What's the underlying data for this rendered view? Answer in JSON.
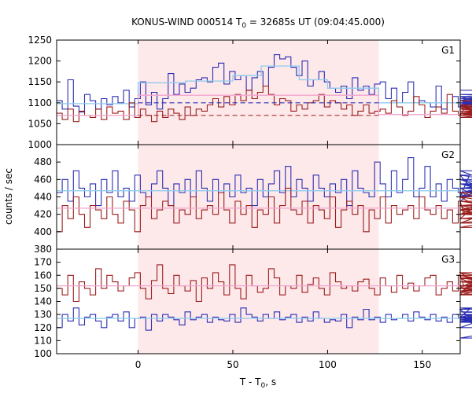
{
  "chart_data": {
    "type": "line",
    "title": "KONUS-WIND 000514 T",
    "title_subscript": "0",
    "title_suffix": " = 32685s UT (09:04:45.000)",
    "xlabel": "T - T",
    "xlabel_subscript": "0",
    "xlabel_suffix": ", s",
    "ylabel": "counts / sec",
    "xlim": [
      -43,
      170
    ],
    "x_ticks": [
      0,
      50,
      100,
      150
    ],
    "x_tick_labels": [
      "0",
      "50",
      "100",
      "150"
    ],
    "bin_width": 2.944,
    "highlight_interval": [
      0,
      127
    ],
    "colors": {
      "highlight": "#fde8ea",
      "raw": "#2b2fb3",
      "averaged": "#8fcbee",
      "bg_raw": "#9c1d1d",
      "bg_fit": "#f2a6cf"
    },
    "panels": [
      {
        "label": "G1",
        "ylim": [
          1000,
          1250
        ],
        "y_ticks": [
          1000,
          1050,
          1100,
          1150,
          1200,
          1250
        ],
        "y_tick_labels": [
          "1000",
          "1050",
          "1100",
          "1150",
          "1200",
          "1250"
        ],
        "series": [
          {
            "role": "raw",
            "values": [
              1105,
              1085,
              1155,
              1092,
              1078,
              1120,
              1105,
              1085,
              1110,
              1095,
              1115,
              1100,
              1130,
              1090,
              1110,
              1150,
              1095,
              1125,
              1085,
              1110,
              1170,
              1120,
              1145,
              1125,
              1135,
              1155,
              1160,
              1150,
              1185,
              1195,
              1145,
              1175,
              1155,
              1165,
              1130,
              1160,
              1175,
              1140,
              1185,
              1215,
              1205,
              1210,
              1185,
              1165,
              1200,
              1140,
              1155,
              1175,
              1150,
              1135,
              1125,
              1140,
              1110,
              1160,
              1130,
              1140,
              1120,
              1145,
              1150,
              1110,
              1135,
              1100,
              1125,
              1150,
              1100,
              1105,
              1100,
              1090,
              1140,
              1085,
              1100,
              1115,
              1090,
              1105,
              1100,
              1095,
              1105,
              1115,
              1090,
              1110,
              1100,
              1110,
              1095,
              1115,
              1100,
              1095,
              1105,
              1085,
              1115,
              1090,
              1105,
              1095,
              1115,
              1090,
              1110,
              1095,
              1120,
              1105,
              1100,
              1130
            ]
          },
          {
            "role": "averaged",
            "segments": [
              {
                "x": [
                  -43,
                  0
                ],
                "y": 1098
              },
              {
                "x": [
                  0,
                  25
                ],
                "y": 1148
              },
              {
                "x": [
                  25,
                  50
                ],
                "y": 1152
              },
              {
                "x": [
                  50,
                  65
                ],
                "y": 1165
              },
              {
                "x": [
                  65,
                  85
                ],
                "y": 1188
              },
              {
                "x": [
                  85,
                  100
                ],
                "y": 1155
              },
              {
                "x": [
                  100,
                  127
                ],
                "y": 1135
              },
              {
                "x": [
                  127,
                  170
                ],
                "y": 1100
              }
            ]
          },
          {
            "role": "bg_raw",
            "values": [
              1075,
              1060,
              1085,
              1055,
              1080,
              1070,
              1065,
              1085,
              1060,
              1090,
              1075,
              1080,
              1060,
              1100,
              1065,
              1085,
              1070,
              1055,
              1080,
              1065,
              1085,
              1075,
              1060,
              1090,
              1070,
              1085,
              1080,
              1095,
              1110,
              1090,
              1115,
              1095,
              1120,
              1105,
              1130,
              1110,
              1125,
              1140,
              1120,
              1095,
              1110,
              1105,
              1080,
              1095,
              1085,
              1100,
              1105,
              1120,
              1090,
              1105,
              1100,
              1085,
              1095,
              1070,
              1080,
              1095,
              1075,
              1080,
              1085,
              1075,
              1105,
              1090,
              1070,
              1080,
              1115,
              1095,
              1065,
              1080,
              1090,
              1075,
              1120,
              1080,
              1070,
              1085,
              1095,
              1075,
              1070,
              1085,
              1095,
              1080,
              1075,
              1070,
              1085,
              1090,
              1080,
              1070,
              1075,
              1065,
              1085,
              1070,
              1080,
              1090,
              1075,
              1070,
              1080,
              1085,
              1075,
              1105,
              1095,
              1085
            ]
          },
          {
            "role": "bg_fit",
            "segments": [
              {
                "x": [
                  -43,
                  0
                ],
                "y": 1070
              },
              {
                "x": [
                  0,
                  127
                ],
                "y": 1118
              },
              {
                "x": [
                  127,
                  170
                ],
                "y": 1072
              }
            ]
          }
        ],
        "dashed_lines": [
          {
            "role": "raw",
            "x": [
              0,
              127
            ],
            "y": 1100
          },
          {
            "role": "bg_raw",
            "x": [
              0,
              127
            ],
            "y": 1070
          }
        ]
      },
      {
        "label": "G2",
        "ylim": [
          380,
          500
        ],
        "y_ticks": [
          380,
          400,
          420,
          440,
          460,
          480
        ],
        "y_tick_labels": [
          "380",
          "400",
          "420",
          "440",
          "460",
          "480"
        ],
        "series": [
          {
            "role": "raw",
            "values": [
              445,
              460,
              435,
              470,
              450,
              440,
              455,
              430,
              460,
              445,
              470,
              440,
              450,
              435,
              465,
              445,
              440,
              455,
              470,
              450,
              430,
              455,
              445,
              460,
              440,
              470,
              450,
              435,
              460,
              445,
              455,
              440,
              465,
              445,
              450,
              430,
              460,
              440,
              455,
              470,
              445,
              475,
              440,
              460,
              450,
              435,
              465,
              450,
              440,
              455,
              445,
              460,
              430,
              470,
              450,
              445,
              440,
              480,
              455,
              440,
              470,
              445,
              460,
              485,
              440,
              450,
              475,
              440,
              455,
              435,
              460,
              450,
              445,
              440,
              465,
              445,
              450,
              435,
              460,
              445,
              455,
              440,
              470,
              445,
              450,
              455,
              440,
              465,
              450,
              445,
              460,
              440,
              455,
              445,
              450,
              460,
              440,
              455,
              445,
              450
            ]
          },
          {
            "role": "averaged",
            "segments": [
              {
                "x": [
                  -43,
                  170
                ],
                "y": 447
              }
            ]
          },
          {
            "role": "bg_raw",
            "values": [
              400,
              430,
              415,
              440,
              420,
              405,
              430,
              425,
              415,
              440,
              420,
              410,
              435,
              425,
              400,
              430,
              440,
              415,
              425,
              435,
              430,
              410,
              425,
              420,
              440,
              415,
              425,
              430,
              420,
              445,
              425,
              410,
              435,
              420,
              430,
              405,
              425,
              420,
              440,
              410,
              430,
              450,
              425,
              420,
              435,
              410,
              430,
              425,
              415,
              440,
              405,
              425,
              435,
              420,
              430,
              400,
              425,
              415,
              440,
              410,
              430,
              420,
              425,
              430,
              415,
              440,
              425,
              420,
              430,
              415,
              425,
              410,
              435,
              420,
              425,
              430,
              415,
              440,
              420,
              425,
              410,
              430,
              435,
              425,
              405,
              420,
              440,
              425,
              430,
              415,
              420,
              425,
              445,
              410,
              425,
              430,
              435,
              420,
              415,
              430
            ]
          },
          {
            "role": "bg_fit",
            "segments": [
              {
                "x": [
                  -43,
                  170
                ],
                "y": 427
              }
            ]
          }
        ],
        "dashed_lines": []
      },
      {
        "label": "G3",
        "ylim": [
          100,
          180
        ],
        "y_ticks": [
          100,
          110,
          120,
          130,
          140,
          150,
          160,
          170
        ],
        "y_tick_labels": [
          "100",
          "110",
          "120",
          "130",
          "140",
          "150",
          "160",
          "170"
        ],
        "series": [
          {
            "role": "raw",
            "values": [
              120,
              130,
              125,
              135,
              122,
              128,
              130,
              125,
              120,
              128,
              130,
              125,
              132,
              120,
              127,
              128,
              118,
              130,
              125,
              130,
              128,
              126,
              122,
              132,
              126,
              128,
              130,
              124,
              128,
              126,
              125,
              130,
              124,
              135,
              130,
              128,
              125,
              130,
              127,
              132,
              126,
              128,
              130,
              124,
              128,
              125,
              132,
              127,
              124,
              126,
              125,
              130,
              120,
              128,
              126,
              134,
              126,
              128,
              124,
              130,
              126,
              127,
              130,
              125,
              132,
              128,
              126,
              130,
              125,
              128,
              124,
              130,
              127,
              128,
              134,
              124,
              126,
              128,
              120,
              130,
              126,
              128,
              135,
              130,
              126,
              128,
              125,
              130,
              127,
              135,
              128,
              126,
              130,
              125,
              112,
              128,
              130,
              124,
              132,
              128
            ]
          },
          {
            "role": "averaged",
            "segments": [
              {
                "x": [
                  -43,
                  170
                ],
                "y": 127
              }
            ]
          },
          {
            "role": "bg_raw",
            "values": [
              150,
              145,
              160,
              140,
              155,
              150,
              145,
              165,
              150,
              160,
              155,
              148,
              152,
              158,
              162,
              150,
              142,
              156,
              168,
              150,
              146,
              160,
              152,
              148,
              156,
              140,
              158,
              150,
              162,
              155,
              145,
              168,
              150,
              142,
              160,
              152,
              147,
              150,
              165,
              158,
              145,
              152,
              150,
              160,
              147,
              153,
              158,
              150,
              145,
              162,
              155,
              150,
              152,
              148,
              155,
              157,
              150,
              145,
              158,
              152,
              147,
              160,
              150,
              154,
              148,
              152,
              158,
              160,
              145,
              150,
              155,
              148,
              160,
              152,
              145,
              158,
              150,
              162,
              148,
              152,
              150,
              147,
              155,
              160,
              148,
              152,
              158,
              150,
              145,
              162,
              148,
              150,
              160,
              145,
              152,
              155,
              148,
              152,
              158,
              150
            ]
          },
          {
            "role": "bg_fit",
            "segments": [
              {
                "x": [
                  -43,
                  170
                ],
                "y": 152
              }
            ]
          }
        ],
        "dashed_lines": []
      }
    ]
  }
}
